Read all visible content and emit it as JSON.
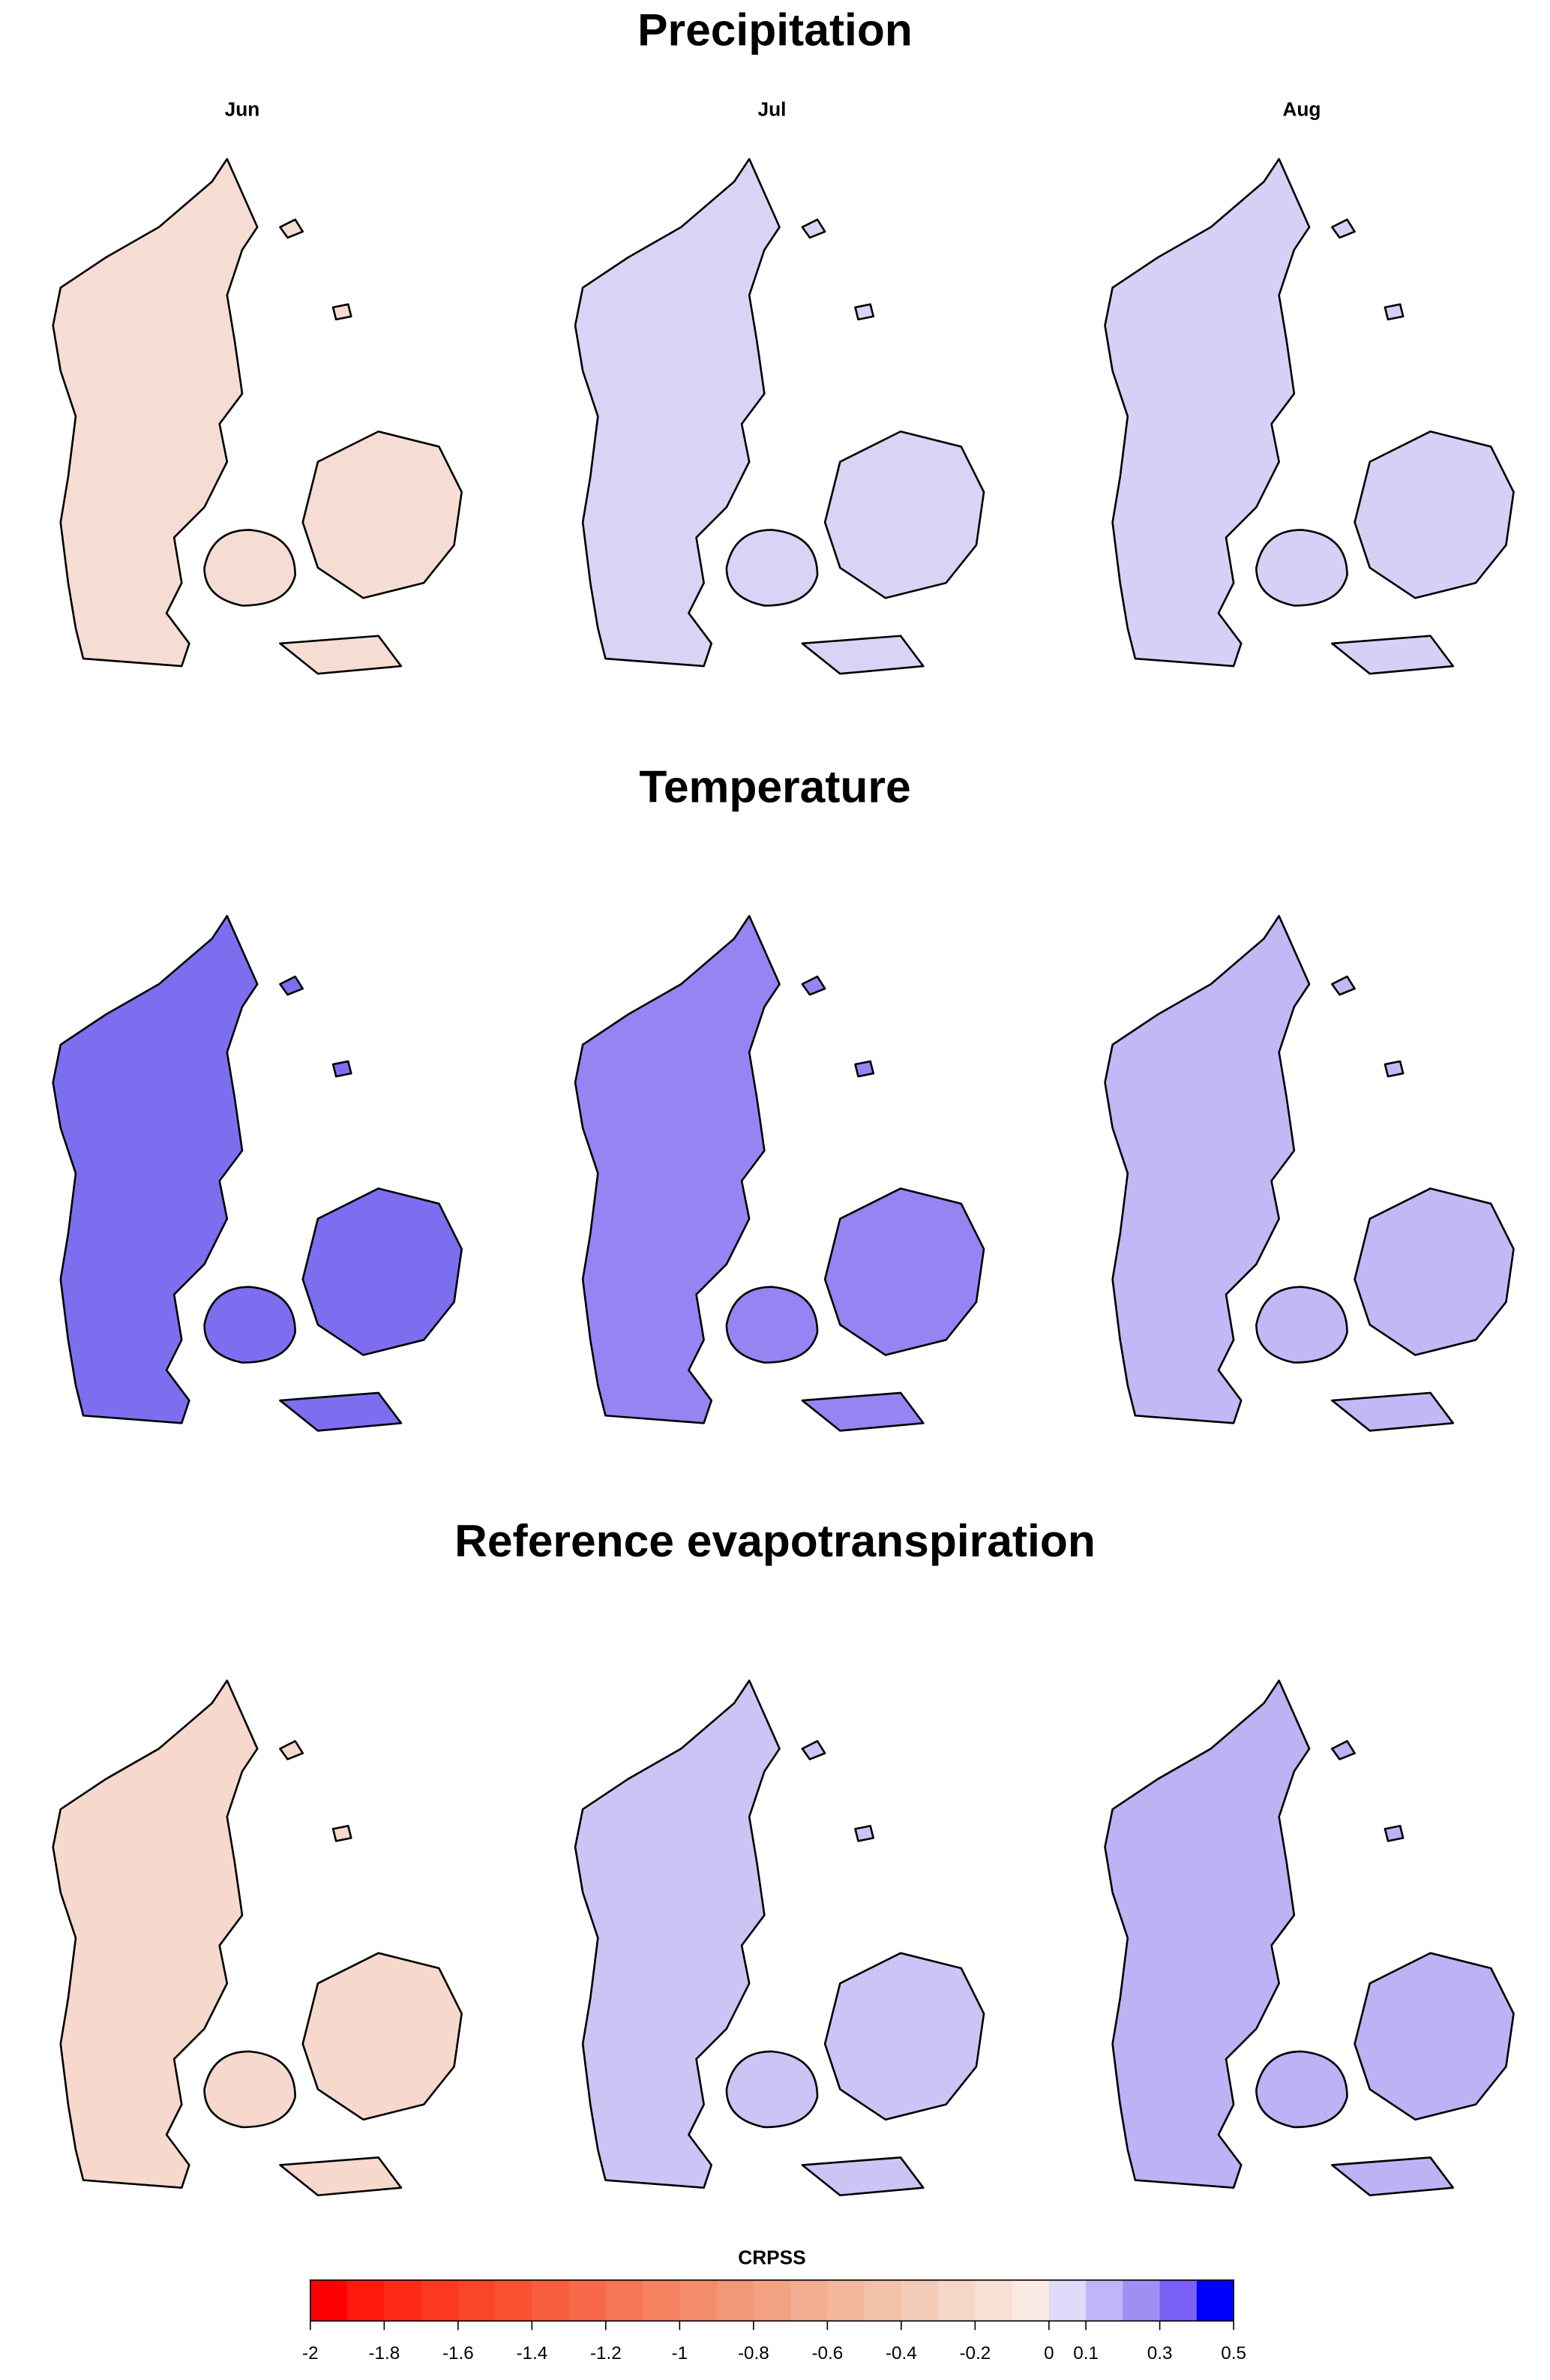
{
  "sections": [
    {
      "title": "Precipitation",
      "fills": [
        "#f6ddd3",
        "#d9d3f5",
        "#d6d0f7"
      ]
    },
    {
      "title": "Temperature",
      "fills": [
        "#7d6ef0",
        "#9585f2",
        "#c2b8f6"
      ]
    },
    {
      "title": "Reference evapotranspiration",
      "fills": [
        "#f6d8cc",
        "#cdc4f5",
        "#bdb2f4"
      ]
    }
  ],
  "months": [
    "Jun",
    "Jul",
    "Aug"
  ],
  "colorbar": {
    "title": "CRPSS",
    "breaks": [
      -2,
      -1.9,
      -1.8,
      -1.7,
      -1.6,
      -1.5,
      -1.4,
      -1.3,
      -1.2,
      -1.1,
      -1,
      -0.9,
      -0.8,
      -0.7,
      -0.6,
      -0.5,
      -0.4,
      -0.3,
      -0.2,
      -0.1,
      0,
      0.1,
      0.2,
      0.3,
      0.4,
      0.5
    ],
    "colors": [
      "#ff0000",
      "#ff1a0d",
      "#fe2a17",
      "#fc3820",
      "#fa4529",
      "#f95233",
      "#f85e3e",
      "#f66a49",
      "#f57654",
      "#f4815f",
      "#f38c6b",
      "#f29777",
      "#f2a283",
      "#f2ac8f",
      "#f2b79c",
      "#f3c1aa",
      "#f4cbb8",
      "#f6d6c6",
      "#f8e0d5",
      "#fbebe4",
      "#e0dafb",
      "#c1b4f7",
      "#a18ef4",
      "#7a60f5",
      "#0000ff"
    ],
    "ticks": [
      -2,
      -1.8,
      -1.6,
      -1.4,
      -1.2,
      -1,
      -0.8,
      -0.6,
      -0.4,
      -0.2,
      0,
      0.1,
      0.3,
      0.5
    ]
  }
}
